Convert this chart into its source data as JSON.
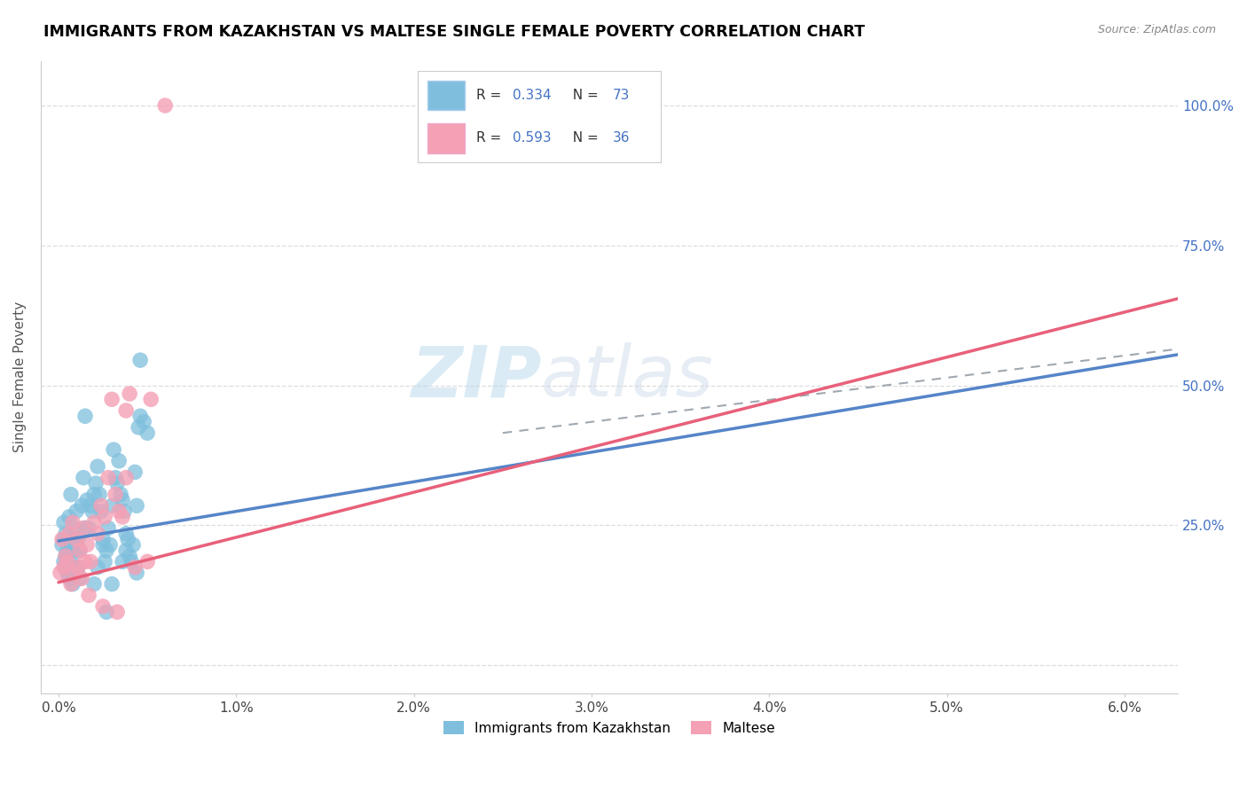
{
  "title": "IMMIGRANTS FROM KAZAKHSTAN VS MALTESE SINGLE FEMALE POVERTY CORRELATION CHART",
  "source": "Source: ZipAtlas.com",
  "ylabel": "Single Female Poverty",
  "y_ticks": [
    0.0,
    0.25,
    0.5,
    0.75,
    1.0
  ],
  "y_tick_labels": [
    "",
    "25.0%",
    "50.0%",
    "75.0%",
    "100.0%"
  ],
  "x_ticks": [
    0.0,
    0.01,
    0.02,
    0.03,
    0.04,
    0.05,
    0.06
  ],
  "xlim": [
    -0.001,
    0.063
  ],
  "ylim": [
    -0.05,
    1.08
  ],
  "legend_label1": "Immigrants from Kazakhstan",
  "legend_label2": "Maltese",
  "R1": 0.334,
  "N1": 73,
  "R2": 0.593,
  "N2": 36,
  "color_blue": "#7fbfdd",
  "color_pink": "#f4a0b5",
  "color_blue_text": "#4472c4",
  "line_blue": "#5585c8",
  "line_pink": "#e8607a",
  "line_dashed_blue": "#a0b8d8",
  "watermark_part1": "ZIP",
  "watermark_part2": "atlas",
  "blue_points": [
    [
      0.0002,
      0.215
    ],
    [
      0.0003,
      0.255
    ],
    [
      0.0003,
      0.225
    ],
    [
      0.0003,
      0.185
    ],
    [
      0.0004,
      0.195
    ],
    [
      0.0004,
      0.235
    ],
    [
      0.0004,
      0.175
    ],
    [
      0.0005,
      0.165
    ],
    [
      0.0005,
      0.205
    ],
    [
      0.0005,
      0.185
    ],
    [
      0.0006,
      0.265
    ],
    [
      0.0006,
      0.205
    ],
    [
      0.0006,
      0.155
    ],
    [
      0.0007,
      0.305
    ],
    [
      0.0007,
      0.155
    ],
    [
      0.0007,
      0.195
    ],
    [
      0.0008,
      0.225
    ],
    [
      0.0008,
      0.145
    ],
    [
      0.0009,
      0.245
    ],
    [
      0.0009,
      0.175
    ],
    [
      0.001,
      0.275
    ],
    [
      0.001,
      0.205
    ],
    [
      0.001,
      0.215
    ],
    [
      0.0011,
      0.225
    ],
    [
      0.0011,
      0.175
    ],
    [
      0.0012,
      0.205
    ],
    [
      0.0012,
      0.155
    ],
    [
      0.0013,
      0.285
    ],
    [
      0.0014,
      0.335
    ],
    [
      0.0015,
      0.445
    ],
    [
      0.0015,
      0.245
    ],
    [
      0.0016,
      0.295
    ],
    [
      0.0017,
      0.245
    ],
    [
      0.0018,
      0.285
    ],
    [
      0.0019,
      0.275
    ],
    [
      0.002,
      0.305
    ],
    [
      0.002,
      0.145
    ],
    [
      0.0021,
      0.325
    ],
    [
      0.0022,
      0.355
    ],
    [
      0.0022,
      0.175
    ],
    [
      0.0023,
      0.305
    ],
    [
      0.0024,
      0.275
    ],
    [
      0.0025,
      0.225
    ],
    [
      0.0025,
      0.215
    ],
    [
      0.0026,
      0.185
    ],
    [
      0.0027,
      0.205
    ],
    [
      0.0027,
      0.095
    ],
    [
      0.0028,
      0.245
    ],
    [
      0.0029,
      0.215
    ],
    [
      0.003,
      0.285
    ],
    [
      0.003,
      0.145
    ],
    [
      0.0031,
      0.385
    ],
    [
      0.0032,
      0.335
    ],
    [
      0.0033,
      0.325
    ],
    [
      0.0034,
      0.365
    ],
    [
      0.0035,
      0.305
    ],
    [
      0.0036,
      0.295
    ],
    [
      0.0036,
      0.185
    ],
    [
      0.0037,
      0.275
    ],
    [
      0.0038,
      0.235
    ],
    [
      0.0038,
      0.205
    ],
    [
      0.0039,
      0.225
    ],
    [
      0.004,
      0.195
    ],
    [
      0.0041,
      0.185
    ],
    [
      0.0042,
      0.215
    ],
    [
      0.0043,
      0.345
    ],
    [
      0.0044,
      0.285
    ],
    [
      0.0044,
      0.165
    ],
    [
      0.0045,
      0.425
    ],
    [
      0.0046,
      0.545
    ],
    [
      0.0046,
      0.445
    ],
    [
      0.0048,
      0.435
    ],
    [
      0.005,
      0.415
    ]
  ],
  "pink_points": [
    [
      0.0001,
      0.165
    ],
    [
      0.0002,
      0.225
    ],
    [
      0.0003,
      0.175
    ],
    [
      0.0004,
      0.195
    ],
    [
      0.0005,
      0.185
    ],
    [
      0.0006,
      0.235
    ],
    [
      0.0007,
      0.145
    ],
    [
      0.0008,
      0.255
    ],
    [
      0.0009,
      0.165
    ],
    [
      0.001,
      0.225
    ],
    [
      0.0011,
      0.175
    ],
    [
      0.0012,
      0.205
    ],
    [
      0.0013,
      0.155
    ],
    [
      0.0014,
      0.245
    ],
    [
      0.0015,
      0.185
    ],
    [
      0.0016,
      0.215
    ],
    [
      0.0017,
      0.125
    ],
    [
      0.0018,
      0.185
    ],
    [
      0.002,
      0.255
    ],
    [
      0.0022,
      0.235
    ],
    [
      0.0024,
      0.285
    ],
    [
      0.0025,
      0.105
    ],
    [
      0.0026,
      0.265
    ],
    [
      0.0028,
      0.335
    ],
    [
      0.003,
      0.475
    ],
    [
      0.0032,
      0.305
    ],
    [
      0.0033,
      0.095
    ],
    [
      0.0034,
      0.275
    ],
    [
      0.0036,
      0.265
    ],
    [
      0.0038,
      0.335
    ],
    [
      0.0038,
      0.455
    ],
    [
      0.004,
      0.485
    ],
    [
      0.0043,
      0.175
    ],
    [
      0.005,
      0.185
    ],
    [
      0.0052,
      0.475
    ],
    [
      0.006,
      1.0
    ]
  ],
  "line_blue_x0": 0.0,
  "line_blue_y0": 0.222,
  "line_blue_x1": 0.063,
  "line_blue_y1": 0.555,
  "line_pink_x0": 0.0,
  "line_pink_y0": 0.148,
  "line_pink_x1": 0.063,
  "line_pink_y1": 0.655
}
